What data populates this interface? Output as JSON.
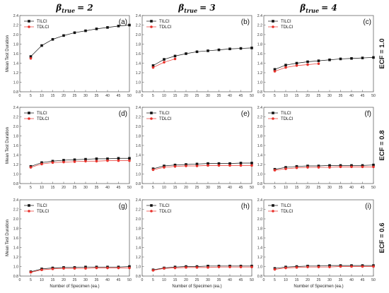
{
  "figure": {
    "column_headers": [
      {
        "symbol": "β",
        "subscript": "true",
        "value": "= 2"
      },
      {
        "symbol": "β",
        "subscript": "true",
        "value": "= 3"
      },
      {
        "symbol": "β",
        "subscript": "true",
        "value": "= 4"
      }
    ],
    "row_headers": [
      "ECF = 1.0",
      "ECF = 0.8",
      "ECF = 0.6"
    ],
    "colors": {
      "TILCI": "#111111",
      "TDLCI": "#e8322b",
      "frame": "#666666"
    }
  },
  "chart_data": [
    {
      "type": "line",
      "panel_label": "(a)",
      "x": [
        5,
        10,
        15,
        20,
        25,
        30,
        35,
        40,
        45,
        50
      ],
      "series": [
        {
          "name": "TILCI",
          "values": [
            1.54,
            1.77,
            1.9,
            1.98,
            2.04,
            2.08,
            2.12,
            2.15,
            2.18,
            2.2
          ]
        },
        {
          "name": "TDLCI",
          "values": [
            1.5,
            null,
            null,
            null,
            null,
            null,
            null,
            null,
            null,
            null
          ]
        }
      ],
      "xlabel": "",
      "ylabel": "Mean Test Duration",
      "xlim": [
        0,
        50
      ],
      "ylim": [
        0.8,
        2.4
      ],
      "xticks": [
        0,
        5,
        10,
        15,
        20,
        25,
        30,
        35,
        40,
        45,
        50
      ],
      "yticks": [
        0.8,
        1.0,
        1.2,
        1.4,
        1.6,
        1.8,
        2.0,
        2.2,
        2.4
      ],
      "legend": "top-left",
      "grid": false
    },
    {
      "type": "line",
      "panel_label": "(b)",
      "x": [
        5,
        10,
        15,
        20,
        25,
        30,
        35,
        40,
        45,
        50
      ],
      "series": [
        {
          "name": "TILCI",
          "values": [
            1.35,
            1.48,
            1.55,
            1.6,
            1.64,
            1.66,
            1.68,
            1.7,
            1.71,
            1.72
          ]
        },
        {
          "name": "TDLCI",
          "values": [
            1.31,
            1.42,
            1.49,
            null,
            null,
            null,
            null,
            null,
            null,
            null
          ]
        }
      ],
      "xlabel": "",
      "ylabel": "",
      "xlim": [
        0,
        50
      ],
      "ylim": [
        0.8,
        2.4
      ],
      "xticks": [
        0,
        5,
        10,
        15,
        20,
        25,
        30,
        35,
        40,
        45,
        50
      ],
      "yticks": [
        0.8,
        1.0,
        1.2,
        1.4,
        1.6,
        1.8,
        2.0,
        2.2,
        2.4
      ],
      "legend": "top-left",
      "grid": false
    },
    {
      "type": "line",
      "panel_label": "(c)",
      "x": [
        5,
        10,
        15,
        20,
        25,
        30,
        35,
        40,
        45,
        50
      ],
      "series": [
        {
          "name": "TILCI",
          "values": [
            1.27,
            1.36,
            1.4,
            1.43,
            1.45,
            1.47,
            1.49,
            1.5,
            1.51,
            1.52
          ]
        },
        {
          "name": "TDLCI",
          "values": [
            1.23,
            1.31,
            1.35,
            1.37,
            1.39,
            null,
            null,
            null,
            null,
            null
          ]
        }
      ],
      "xlabel": "",
      "ylabel": "",
      "xlim": [
        0,
        50
      ],
      "ylim": [
        0.8,
        2.4
      ],
      "xticks": [
        0,
        5,
        10,
        15,
        20,
        25,
        30,
        35,
        40,
        45,
        50
      ],
      "yticks": [
        0.8,
        1.0,
        1.2,
        1.4,
        1.6,
        1.8,
        2.0,
        2.2,
        2.4
      ],
      "legend": "top-left",
      "grid": false
    },
    {
      "type": "line",
      "panel_label": "(d)",
      "x": [
        5,
        10,
        15,
        20,
        25,
        30,
        35,
        40,
        45,
        50
      ],
      "series": [
        {
          "name": "TILCI",
          "values": [
            1.16,
            1.24,
            1.27,
            1.29,
            1.3,
            1.31,
            1.32,
            1.32,
            1.33,
            1.33
          ]
        },
        {
          "name": "TDLCI",
          "values": [
            1.14,
            1.21,
            1.24,
            1.25,
            1.26,
            1.27,
            1.27,
            1.28,
            1.28,
            1.28
          ]
        }
      ],
      "xlabel": "",
      "ylabel": "Mean Test Duration",
      "xlim": [
        0,
        50
      ],
      "ylim": [
        0.8,
        2.4
      ],
      "xticks": [
        0,
        5,
        10,
        15,
        20,
        25,
        30,
        35,
        40,
        45,
        50
      ],
      "yticks": [
        0.8,
        1.0,
        1.2,
        1.4,
        1.6,
        1.8,
        2.0,
        2.2,
        2.4
      ],
      "legend": "top-left",
      "grid": false
    },
    {
      "type": "line",
      "panel_label": "(e)",
      "x": [
        5,
        10,
        15,
        20,
        25,
        30,
        35,
        40,
        45,
        50
      ],
      "series": [
        {
          "name": "TILCI",
          "values": [
            1.11,
            1.17,
            1.19,
            1.2,
            1.21,
            1.22,
            1.22,
            1.22,
            1.23,
            1.23
          ]
        },
        {
          "name": "TDLCI",
          "values": [
            1.09,
            1.14,
            1.16,
            1.17,
            1.17,
            1.18,
            1.18,
            1.18,
            1.18,
            1.18
          ]
        }
      ],
      "xlabel": "",
      "ylabel": "",
      "xlim": [
        0,
        50
      ],
      "ylim": [
        0.8,
        2.4
      ],
      "xticks": [
        0,
        5,
        10,
        15,
        20,
        25,
        30,
        35,
        40,
        45,
        50
      ],
      "yticks": [
        0.8,
        1.0,
        1.2,
        1.4,
        1.6,
        1.8,
        2.0,
        2.2,
        2.4
      ],
      "legend": "top-left",
      "grid": false
    },
    {
      "type": "line",
      "panel_label": "(f)",
      "x": [
        5,
        10,
        15,
        20,
        25,
        30,
        35,
        40,
        45,
        50
      ],
      "series": [
        {
          "name": "TILCI",
          "values": [
            1.1,
            1.14,
            1.16,
            1.17,
            1.17,
            1.18,
            1.18,
            1.18,
            1.18,
            1.19
          ]
        },
        {
          "name": "TDLCI",
          "values": [
            1.08,
            1.11,
            1.13,
            1.14,
            1.14,
            1.14,
            1.15,
            1.15,
            1.15,
            1.15
          ]
        }
      ],
      "xlabel": "",
      "ylabel": "",
      "xlim": [
        0,
        50
      ],
      "ylim": [
        0.8,
        2.4
      ],
      "xticks": [
        0,
        5,
        10,
        15,
        20,
        25,
        30,
        35,
        40,
        45,
        50
      ],
      "yticks": [
        0.8,
        1.0,
        1.2,
        1.4,
        1.6,
        1.8,
        2.0,
        2.2,
        2.4
      ],
      "legend": "top-left",
      "grid": false
    },
    {
      "type": "line",
      "panel_label": "(g)",
      "x": [
        5,
        10,
        15,
        20,
        25,
        30,
        35,
        40,
        45,
        50
      ],
      "series": [
        {
          "name": "TILCI",
          "values": [
            0.89,
            0.95,
            0.97,
            0.98,
            0.98,
            0.99,
            0.99,
            0.99,
            0.99,
            1.0
          ]
        },
        {
          "name": "TDLCI",
          "values": [
            0.88,
            0.93,
            0.95,
            0.96,
            0.96,
            0.96,
            0.97,
            0.97,
            0.97,
            0.97
          ]
        }
      ],
      "xlabel": "Number of Specimen (ea.)",
      "ylabel": "Mean Test Duration",
      "xlim": [
        0,
        50
      ],
      "ylim": [
        0.8,
        2.4
      ],
      "xticks": [
        0,
        5,
        10,
        15,
        20,
        25,
        30,
        35,
        40,
        45,
        50
      ],
      "yticks": [
        0.8,
        1.0,
        1.2,
        1.4,
        1.6,
        1.8,
        2.0,
        2.2,
        2.4
      ],
      "legend": "top-left",
      "grid": false
    },
    {
      "type": "line",
      "panel_label": "(h)",
      "x": [
        5,
        10,
        15,
        20,
        25,
        30,
        35,
        40,
        45,
        50
      ],
      "series": [
        {
          "name": "TILCI",
          "values": [
            0.93,
            0.97,
            0.99,
            1.0,
            1.0,
            1.01,
            1.01,
            1.01,
            1.01,
            1.01
          ]
        },
        {
          "name": "TDLCI",
          "values": [
            0.92,
            0.96,
            0.97,
            0.98,
            0.98,
            0.98,
            0.99,
            0.99,
            0.99,
            0.99
          ]
        }
      ],
      "xlabel": "Number of Specimen (ea.)",
      "ylabel": "",
      "xlim": [
        0,
        50
      ],
      "ylim": [
        0.8,
        2.4
      ],
      "xticks": [
        0,
        5,
        10,
        15,
        20,
        25,
        30,
        35,
        40,
        45,
        50
      ],
      "yticks": [
        0.8,
        1.0,
        1.2,
        1.4,
        1.6,
        1.8,
        2.0,
        2.2,
        2.4
      ],
      "legend": "top-left",
      "grid": false
    },
    {
      "type": "line",
      "panel_label": "(i)",
      "x": [
        5,
        10,
        15,
        20,
        25,
        30,
        35,
        40,
        45,
        50
      ],
      "series": [
        {
          "name": "TILCI",
          "values": [
            0.96,
            0.99,
            1.0,
            1.01,
            1.01,
            1.02,
            1.02,
            1.02,
            1.02,
            1.02
          ]
        },
        {
          "name": "TDLCI",
          "values": [
            0.94,
            0.97,
            0.98,
            0.99,
            0.99,
            0.99,
            1.0,
            1.0,
            1.0,
            1.0
          ]
        }
      ],
      "xlabel": "Number of Specimen (ea.)",
      "ylabel": "",
      "xlim": [
        0,
        50
      ],
      "ylim": [
        0.8,
        2.4
      ],
      "xticks": [
        0,
        5,
        10,
        15,
        20,
        25,
        30,
        35,
        40,
        45,
        50
      ],
      "yticks": [
        0.8,
        1.0,
        1.2,
        1.4,
        1.6,
        1.8,
        2.0,
        2.2,
        2.4
      ],
      "legend": "top-left",
      "grid": false
    }
  ]
}
